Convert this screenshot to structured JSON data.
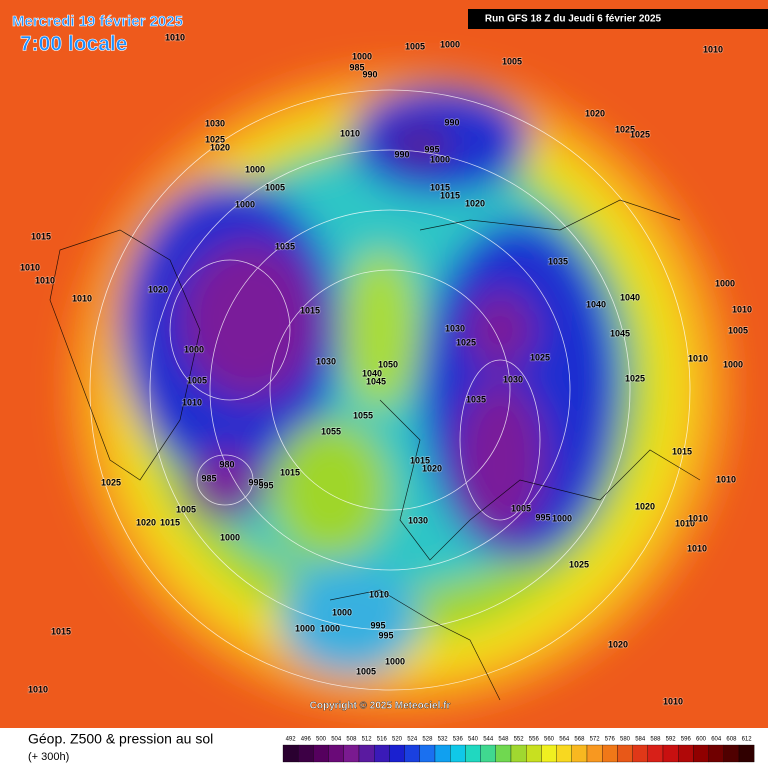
{
  "header": {
    "date": "Mercredi 19 février 2025",
    "time": "7:00 locale",
    "run": "Run GFS 18 Z du Jeudi 6 février 2025",
    "copyright": "Copyright © 2025 Meteociel.fr"
  },
  "footer": {
    "title": "Géop. Z500 & pression au sol",
    "lead": "(+ 300h)"
  },
  "pressure_labels": [
    1010,
    1000,
    985,
    990,
    1005,
    1000,
    1005,
    1010,
    990,
    990,
    995,
    1000,
    1010,
    1030,
    1025,
    1020,
    1000,
    1005,
    1000,
    1015,
    1015,
    1020,
    1020,
    1025,
    1025,
    1015,
    1010,
    1010,
    1035,
    1035,
    1020,
    1010,
    1015,
    1040,
    1040,
    1000,
    1010,
    1005,
    1030,
    1025,
    1045,
    1000,
    1030,
    1050,
    1040,
    1045,
    1025,
    1010,
    1000,
    1005,
    1030,
    1025,
    1010,
    1035,
    1055,
    1055,
    1015,
    1015,
    1020,
    980,
    985,
    995,
    995,
    1015,
    1025,
    1010,
    1005,
    1005,
    995,
    1000,
    1020,
    1020,
    1015,
    1030,
    1010,
    1010,
    1000,
    1010,
    1025,
    1010,
    1000,
    995,
    995,
    1000,
    1000,
    1015,
    1000,
    1020,
    1005,
    1010,
    1010
  ],
  "legend": {
    "ticks": [
      492,
      496,
      500,
      504,
      508,
      512,
      516,
      520,
      524,
      528,
      532,
      536,
      540,
      544,
      548,
      552,
      556,
      560,
      564,
      568,
      572,
      576,
      580,
      584,
      588,
      592,
      596,
      600,
      604,
      608,
      612
    ]
  }
}
